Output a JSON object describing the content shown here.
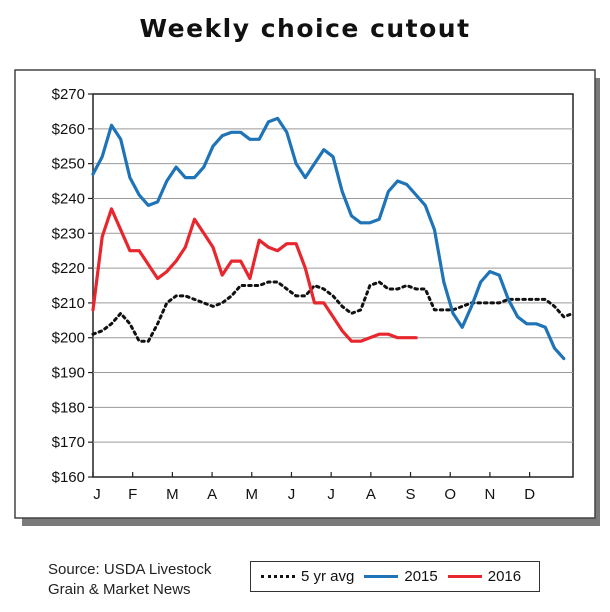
{
  "title": "Weekly choice cutout",
  "source": {
    "line1": "Source: USDA Livestock",
    "line2": "Grain & Market News"
  },
  "colors": {
    "avg5": "#111111",
    "y2015": "#1f73b7",
    "y2016": "#e8262d",
    "grid": "#9a9a9a",
    "frame_shadow": "#7a7a7a"
  },
  "chart_data": {
    "type": "line",
    "title": "Weekly choice cutout",
    "xlabel": "",
    "ylabel": "",
    "ylim": [
      160,
      270
    ],
    "xlim": [
      1,
      53
    ],
    "y_ticks": [
      "$270",
      "$260",
      "$250",
      "$240",
      "$230",
      "$220",
      "$210",
      "$200",
      "$190",
      "$180",
      "$170",
      "$160"
    ],
    "y_tick_values": [
      270,
      260,
      250,
      240,
      230,
      220,
      210,
      200,
      190,
      180,
      170,
      160
    ],
    "x_month_labels": [
      "J",
      "F",
      "M",
      "A",
      "M",
      "J",
      "J",
      "A",
      "S",
      "O",
      "N",
      "D"
    ],
    "x_month_weeks": [
      1,
      5.3,
      9.6,
      13.9,
      18.2,
      22.5,
      26.8,
      31.1,
      35.4,
      39.7,
      44,
      48.3
    ],
    "grid": true,
    "legend_position": "bottom",
    "series": [
      {
        "name": "5 yr avg",
        "style": "dotted",
        "x": [
          1,
          2,
          3,
          4,
          5,
          6,
          7,
          8,
          9,
          10,
          11,
          12,
          13,
          14,
          15,
          16,
          17,
          18,
          19,
          20,
          21,
          22,
          23,
          24,
          25,
          26,
          27,
          28,
          29,
          30,
          31,
          32,
          33,
          34,
          35,
          36,
          37,
          38,
          39,
          40,
          41,
          42,
          43,
          44,
          45,
          46,
          47,
          48,
          49,
          50,
          51,
          52,
          53
        ],
        "values": [
          201,
          202,
          204,
          207,
          204,
          199,
          199,
          204,
          210,
          212,
          212,
          211,
          210,
          209,
          210,
          212,
          215,
          215,
          215,
          216,
          216,
          214,
          212,
          212,
          215,
          214,
          212,
          209,
          207,
          208,
          215,
          216,
          214,
          214,
          215,
          214,
          214,
          208,
          208,
          208,
          209,
          210,
          210,
          210,
          210,
          211,
          211,
          211,
          211,
          211,
          209,
          206,
          207
        ]
      },
      {
        "name": "2015",
        "style": "solid",
        "x": [
          1,
          2,
          3,
          4,
          5,
          6,
          7,
          8,
          9,
          10,
          11,
          12,
          13,
          14,
          15,
          16,
          17,
          18,
          19,
          20,
          21,
          22,
          23,
          24,
          25,
          26,
          27,
          28,
          29,
          30,
          31,
          32,
          33,
          34,
          35,
          36,
          37,
          38,
          39,
          40,
          41,
          42,
          43,
          44,
          45,
          46,
          47,
          48,
          49,
          50,
          51,
          52
        ],
        "values": [
          247,
          252,
          261,
          257,
          246,
          241,
          238,
          239,
          245,
          249,
          246,
          246,
          249,
          255,
          258,
          259,
          259,
          257,
          257,
          262,
          263,
          259,
          250,
          246,
          250,
          254,
          252,
          242,
          235,
          233,
          233,
          234,
          242,
          245,
          244,
          241,
          238,
          231,
          216,
          207,
          203,
          209,
          216,
          219,
          218,
          211,
          206,
          204,
          204,
          203,
          197,
          194
        ]
      },
      {
        "name": "2016",
        "style": "solid",
        "x": [
          1,
          2,
          3,
          4,
          5,
          6,
          7,
          8,
          9,
          10,
          11,
          12,
          13,
          14,
          15,
          16,
          17,
          18,
          19,
          20,
          21,
          22,
          23,
          24,
          25,
          26,
          27,
          28,
          29,
          30,
          31,
          32,
          33,
          34,
          35,
          36
        ],
        "values": [
          208,
          229,
          237,
          231,
          225,
          225,
          221,
          217,
          219,
          222,
          226,
          234,
          230,
          226,
          218,
          222,
          222,
          217,
          228,
          226,
          225,
          227,
          227,
          220,
          210,
          210,
          206,
          202,
          199,
          199,
          200,
          201,
          201,
          200,
          200,
          200
        ]
      }
    ]
  },
  "legend": [
    {
      "label": "5 yr avg",
      "style": "dotted"
    },
    {
      "label": "2015",
      "style": "solid"
    },
    {
      "label": "2016",
      "style": "solid"
    }
  ]
}
